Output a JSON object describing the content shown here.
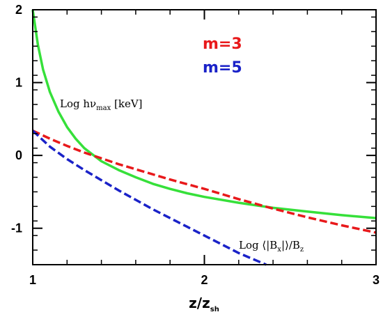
{
  "chart_data": {
    "type": "line",
    "title": "",
    "xlabel": {
      "main": "z/z",
      "sub": "sh"
    },
    "ylabel": "",
    "xlim": [
      1,
      3
    ],
    "ylim": [
      -1.5,
      2
    ],
    "x_ticks": [
      1,
      2,
      3
    ],
    "x_tick_labels": [
      "1",
      "2",
      "3"
    ],
    "y_ticks": [
      -1,
      0,
      1,
      2
    ],
    "y_tick_labels": [
      "-1",
      "0",
      "1",
      "2"
    ],
    "grid": false,
    "legend": [
      {
        "label": "m=3",
        "color": "#e8191b"
      },
      {
        "label": "m=5",
        "color": "#1a22c8"
      }
    ],
    "annotations": {
      "hnu": {
        "prefix": "Log hν",
        "sub": "max",
        "suffix": " [keV]"
      },
      "bx": {
        "prefix": "Log ⟨|B",
        "sub1": "x",
        "mid": "|⟩/B",
        "sub2": "z"
      }
    },
    "series": [
      {
        "color": "#36e03a",
        "style": "solid",
        "x": [
          1.0,
          1.03,
          1.06,
          1.1,
          1.15,
          1.2,
          1.25,
          1.3,
          1.4,
          1.5,
          1.6,
          1.7,
          1.8,
          1.9,
          2.0,
          2.2,
          2.4,
          2.6,
          2.8,
          3.0
        ],
        "y": [
          2.0,
          1.52,
          1.18,
          0.87,
          0.6,
          0.39,
          0.23,
          0.1,
          -0.08,
          -0.2,
          -0.3,
          -0.39,
          -0.46,
          -0.52,
          -0.57,
          -0.65,
          -0.72,
          -0.77,
          -0.82,
          -0.86
        ]
      },
      {
        "color": "#e8191b",
        "style": "dashed",
        "x": [
          1.0,
          1.1,
          1.2,
          1.3,
          1.4,
          1.5,
          1.6,
          1.8,
          2.0,
          2.2,
          2.4,
          2.6,
          2.8,
          3.0
        ],
        "y": [
          0.34,
          0.23,
          0.13,
          0.04,
          -0.04,
          -0.12,
          -0.19,
          -0.33,
          -0.46,
          -0.6,
          -0.73,
          -0.85,
          -0.96,
          -1.06
        ]
      },
      {
        "color": "#1a22c8",
        "style": "dashed",
        "x": [
          1.0,
          1.05,
          1.1,
          1.2,
          1.3,
          1.4,
          1.5,
          1.6,
          1.7,
          1.8,
          1.9,
          2.0,
          2.1,
          2.2,
          2.3,
          2.36
        ],
        "y": [
          0.34,
          0.23,
          0.12,
          -0.05,
          -0.2,
          -0.34,
          -0.48,
          -0.61,
          -0.74,
          -0.86,
          -0.98,
          -1.1,
          -1.22,
          -1.34,
          -1.44,
          -1.5
        ]
      }
    ]
  }
}
